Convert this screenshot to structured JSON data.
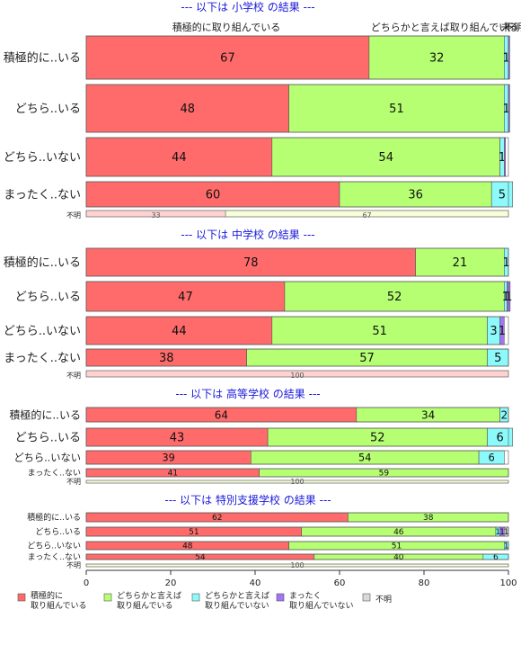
{
  "chart_data": {
    "type": "bar",
    "stacked": "horizontal-percent",
    "top_labels": [
      "積極的に取り組んでいる",
      "どちらかと言えば取り組んでいる",
      "未",
      "不明"
    ],
    "legend": {
      "position": "bottom-left",
      "items": [
        {
          "key": "c1",
          "label_lines": [
            "積極的に",
            "取り組んでいる"
          ]
        },
        {
          "key": "c2",
          "label_lines": [
            "どちらかと言えば",
            "取り組んでいる"
          ]
        },
        {
          "key": "c3",
          "label_lines": [
            "どちらかと言えば",
            "取り組んでいない"
          ]
        },
        {
          "key": "c4",
          "label_lines": [
            "まったく",
            "取り組んでいない"
          ]
        },
        {
          "key": "c5",
          "label_lines": [
            "不明"
          ]
        }
      ]
    },
    "colors": {
      "c1": "#ff6b6b",
      "c2": "#b6ff72",
      "c3": "#8cfafa",
      "c4": "#a374f6",
      "c5": "#d9d9d9"
    },
    "x_axis": {
      "range": [
        0,
        100
      ],
      "ticks": [
        0,
        20,
        40,
        60,
        80,
        100
      ]
    },
    "groups": [
      {
        "title": "--- 以下は 小学校 の結果 ---",
        "rows": [
          {
            "label": "積極的に..いる",
            "values": [
              67,
              32,
              1,
              0.3,
              0
            ],
            "labels": [
              "67",
              "32",
              "1",
              "",
              ""
            ]
          },
          {
            "label": "どちら..いる",
            "values": [
              48,
              51,
              1,
              0.3,
              0
            ],
            "labels": [
              "48",
              "51",
              "1",
              "",
              ""
            ]
          },
          {
            "label": "どちら..いない",
            "values": [
              44,
              54,
              1,
              0.3,
              0
            ],
            "labels": [
              "44",
              "54",
              "1",
              "",
              ""
            ]
          },
          {
            "label": "まったく..ない",
            "values": [
              60,
              36,
              5,
              0,
              0
            ],
            "labels": [
              "60",
              "36",
              "5",
              "",
              ""
            ]
          }
        ],
        "fumei": {
          "label": "不明",
          "values": [
            33,
            67
          ],
          "labels": [
            "33",
            "67"
          ]
        }
      },
      {
        "title": "--- 以下は 中学校 の結果 ---",
        "rows": [
          {
            "label": "積極的に..いる",
            "values": [
              78,
              21,
              1,
              0,
              0
            ],
            "labels": [
              "78",
              "21",
              "1",
              "",
              ""
            ]
          },
          {
            "label": "どちら..いる",
            "values": [
              47,
              52,
              0.7,
              0.7,
              0
            ],
            "labels": [
              "47",
              "52",
              "1",
              "1",
              ""
            ]
          },
          {
            "label": "どちら..いない",
            "values": [
              44,
              51,
              3,
              1,
              0
            ],
            "labels": [
              "44",
              "51",
              "3",
              "1",
              ""
            ]
          },
          {
            "label": "まったく..ない",
            "values": [
              38,
              57,
              5,
              0,
              0
            ],
            "labels": [
              "38",
              "57",
              "5",
              "",
              ""
            ]
          }
        ],
        "fumei": {
          "label": "不明",
          "values": [
            100
          ],
          "labels": [
            "100"
          ]
        }
      },
      {
        "title": "--- 以下は 高等学校 の結果 ---",
        "rows": [
          {
            "label": "積極的に..いる",
            "values": [
              64,
              34,
              2,
              0,
              0
            ],
            "labels": [
              "64",
              "34",
              "2",
              "",
              ""
            ]
          },
          {
            "label": "どちら..いる",
            "values": [
              43,
              52,
              6,
              0,
              0
            ],
            "labels": [
              "43",
              "52",
              "6",
              "",
              ""
            ]
          },
          {
            "label": "どちら..いない",
            "values": [
              39,
              54,
              6,
              0,
              0
            ],
            "labels": [
              "39",
              "54",
              "6",
              "",
              ""
            ]
          },
          {
            "label": "まったく..ない",
            "values": [
              41,
              59,
              0,
              0,
              0
            ],
            "labels": [
              "41",
              "59",
              "",
              "",
              ""
            ]
          }
        ],
        "fumei": {
          "label": "不明",
          "values": [
            0,
            100
          ],
          "labels": [
            "",
            "100"
          ]
        }
      },
      {
        "title": "--- 以下は 特別支援学校 の結果 ---",
        "rows": [
          {
            "label": "積極的に..いる",
            "values": [
              62,
              38,
              0,
              0,
              0
            ],
            "labels": [
              "62",
              "38",
              "",
              "",
              ""
            ]
          },
          {
            "label": "どちら..いる",
            "values": [
              51,
              46,
              1,
              1,
              1
            ],
            "labels": [
              "51",
              "46",
              "1",
              "1",
              "1"
            ]
          },
          {
            "label": "どちら..いない",
            "values": [
              48,
              51,
              1,
              0,
              0
            ],
            "labels": [
              "48",
              "51",
              "1",
              "",
              ""
            ]
          },
          {
            "label": "まったく..ない",
            "values": [
              54,
              40,
              6,
              0,
              0
            ],
            "labels": [
              "54",
              "40",
              "6",
              "",
              ""
            ]
          }
        ],
        "fumei": {
          "label": "不明",
          "values": [
            0,
            100
          ],
          "labels": [
            "",
            "100"
          ]
        }
      }
    ]
  }
}
